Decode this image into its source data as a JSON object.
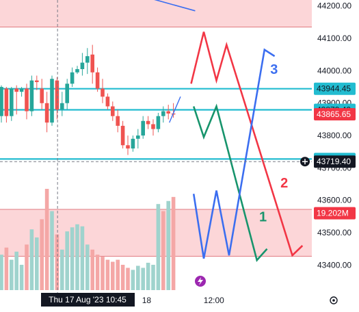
{
  "colors": {
    "up": "#26a69a",
    "down": "#ef5350",
    "vol_up": "#9fd3cd",
    "vol_down": "#f4a7a6",
    "level": "#22bcd0",
    "zone_fill": "#fcd6d8",
    "zone_line": "#e0797f",
    "red_path": "#f23645",
    "green_path": "#17946c",
    "blue_path": "#3b6ef0",
    "price_tag": "#f23645",
    "level_tag": "#22bcd0",
    "dark_tag": "#131722"
  },
  "chart_data": {
    "type": "candlestick",
    "ylim": [
      43350,
      44210
    ],
    "y_ticks": [
      44200,
      44100,
      44000,
      43900,
      43800,
      43700,
      43600,
      43500,
      43400
    ],
    "y_tick_labels": [
      "44200.00",
      "44100.00",
      "44000.00",
      "43900.00",
      "43800.00",
      "43700.00",
      "43600.00",
      "43500.00",
      "43400.00"
    ],
    "x_ticks": [
      {
        "label": "18",
        "bar": 28.7
      },
      {
        "label": "12:00",
        "bar": 42
      }
    ],
    "crosshair_date_label": "Thu 17 Aug '23   10:45",
    "crosshair_bar": 11.1,
    "crosshair_price_label": "43719.40",
    "crosshair_price": 43719.4,
    "levels": [
      {
        "price": 43944.45,
        "label": "43944.45"
      },
      {
        "price": 43879.4,
        "label": "43879.40"
      },
      {
        "price": 43727.55,
        "label": "43727.55"
      }
    ],
    "last_price": {
      "price": 43865.65,
      "label": "43865.65"
    },
    "zones": [
      {
        "top": 44250,
        "bottom": 44135
      },
      {
        "top": 43572,
        "bottom": 43427
      }
    ],
    "volume_label": "19.202M",
    "volume_label_price": 43560,
    "candles": [
      {
        "o": 43860,
        "h": 43955,
        "l": 43840,
        "c": 43950
      },
      {
        "o": 43945,
        "h": 43950,
        "l": 43840,
        "c": 43860
      },
      {
        "o": 43860,
        "h": 43950,
        "l": 43845,
        "c": 43945
      },
      {
        "o": 43945,
        "h": 43955,
        "l": 43865,
        "c": 43935
      },
      {
        "o": 43935,
        "h": 43950,
        "l": 43920,
        "c": 43945
      },
      {
        "o": 43945,
        "h": 43960,
        "l": 43850,
        "c": 43875
      },
      {
        "o": 43875,
        "h": 43985,
        "l": 43860,
        "c": 43970
      },
      {
        "o": 43970,
        "h": 43985,
        "l": 43940,
        "c": 43965
      },
      {
        "o": 43945,
        "h": 43975,
        "l": 43880,
        "c": 43900
      },
      {
        "o": 43900,
        "h": 43935,
        "l": 43810,
        "c": 43840
      },
      {
        "o": 43840,
        "h": 43985,
        "l": 43830,
        "c": 43975
      },
      {
        "o": 43970,
        "h": 43980,
        "l": 43850,
        "c": 43880
      },
      {
        "o": 43880,
        "h": 43935,
        "l": 43860,
        "c": 43900
      },
      {
        "o": 43900,
        "h": 43975,
        "l": 43880,
        "c": 43960
      },
      {
        "o": 43960,
        "h": 44010,
        "l": 43950,
        "c": 43995
      },
      {
        "o": 43995,
        "h": 44015,
        "l": 43990,
        "c": 44005
      },
      {
        "o": 44005,
        "h": 44055,
        "l": 43985,
        "c": 44025
      },
      {
        "o": 44025,
        "h": 44070,
        "l": 43990,
        "c": 44045
      },
      {
        "o": 44050,
        "h": 44080,
        "l": 43960,
        "c": 43995
      },
      {
        "o": 43995,
        "h": 44010,
        "l": 43935,
        "c": 43945
      },
      {
        "o": 43945,
        "h": 43975,
        "l": 43900,
        "c": 43920
      },
      {
        "o": 43920,
        "h": 43930,
        "l": 43880,
        "c": 43890
      },
      {
        "o": 43890,
        "h": 43905,
        "l": 43845,
        "c": 43860
      },
      {
        "o": 43860,
        "h": 43880,
        "l": 43810,
        "c": 43830
      },
      {
        "o": 43830,
        "h": 43845,
        "l": 43760,
        "c": 43770
      },
      {
        "o": 43770,
        "h": 43800,
        "l": 43740,
        "c": 43760
      },
      {
        "o": 43760,
        "h": 43800,
        "l": 43750,
        "c": 43790
      },
      {
        "o": 43790,
        "h": 43820,
        "l": 43760,
        "c": 43800
      },
      {
        "o": 43800,
        "h": 43860,
        "l": 43790,
        "c": 43845
      },
      {
        "o": 43845,
        "h": 43860,
        "l": 43820,
        "c": 43835
      },
      {
        "o": 43835,
        "h": 43850,
        "l": 43800,
        "c": 43820
      },
      {
        "o": 43820,
        "h": 43870,
        "l": 43810,
        "c": 43860
      },
      {
        "o": 43860,
        "h": 43890,
        "l": 43840,
        "c": 43875
      },
      {
        "o": 43875,
        "h": 43895,
        "l": 43850,
        "c": 43868
      },
      {
        "o": 43868,
        "h": 43900,
        "l": 43855,
        "c": 43865
      }
    ],
    "volume_scale_max": 1,
    "volumes": [
      {
        "v": 0.35,
        "up": true
      },
      {
        "v": 0.42,
        "up": false
      },
      {
        "v": 0.3,
        "up": true
      },
      {
        "v": 0.38,
        "up": true
      },
      {
        "v": 0.25,
        "up": true
      },
      {
        "v": 0.45,
        "up": false
      },
      {
        "v": 0.6,
        "up": true
      },
      {
        "v": 0.52,
        "up": true
      },
      {
        "v": 0.7,
        "up": false
      },
      {
        "v": 1.0,
        "up": false
      },
      {
        "v": 0.78,
        "up": true
      },
      {
        "v": 0.55,
        "up": false
      },
      {
        "v": 0.4,
        "up": true
      },
      {
        "v": 0.58,
        "up": true
      },
      {
        "v": 0.62,
        "up": true
      },
      {
        "v": 0.65,
        "up": true
      },
      {
        "v": 0.63,
        "up": true
      },
      {
        "v": 0.45,
        "up": true
      },
      {
        "v": 0.4,
        "up": false
      },
      {
        "v": 0.35,
        "up": false
      },
      {
        "v": 0.33,
        "up": false
      },
      {
        "v": 0.3,
        "up": false
      },
      {
        "v": 0.28,
        "up": false
      },
      {
        "v": 0.3,
        "up": false
      },
      {
        "v": 0.25,
        "up": false
      },
      {
        "v": 0.22,
        "up": false
      },
      {
        "v": 0.2,
        "up": true
      },
      {
        "v": 0.24,
        "up": true
      },
      {
        "v": 0.22,
        "up": true
      },
      {
        "v": 0.27,
        "up": true
      },
      {
        "v": 0.25,
        "up": true
      },
      {
        "v": 0.85,
        "up": true
      },
      {
        "v": 0.78,
        "up": false
      },
      {
        "v": 0.88,
        "up": true
      },
      {
        "v": 0.92,
        "up": false
      }
    ],
    "trend_line": [
      {
        "bar": 23.3,
        "p": 44250
      },
      {
        "bar": 38.3,
        "p": 44185
      }
    ],
    "small_line": [
      {
        "bar": 33.2,
        "p": 43840
      },
      {
        "bar": 35.4,
        "p": 43920
      }
    ],
    "paths": [
      {
        "label": "2",
        "color_key": "red_path",
        "points": [
          [
            37.5,
            43960
          ],
          [
            40.0,
            44120
          ],
          [
            42.5,
            43970
          ],
          [
            44.5,
            44080
          ],
          [
            57.5,
            43430
          ],
          [
            59.5,
            43460
          ]
        ],
        "label_bar": 55.9,
        "label_price": 43640
      },
      {
        "label": "1",
        "color_key": "green_path",
        "points": [
          [
            38.0,
            43890
          ],
          [
            40.0,
            43795
          ],
          [
            42.5,
            43890
          ],
          [
            50.5,
            43415
          ],
          [
            52.5,
            43450
          ]
        ],
        "label_bar": 51.7,
        "label_price": 43535
      },
      {
        "label": "3",
        "color_key": "blue_path",
        "points": [
          [
            38.0,
            43620
          ],
          [
            40.0,
            43420
          ],
          [
            42.5,
            43630
          ],
          [
            45.0,
            43430
          ],
          [
            52.0,
            44065
          ],
          [
            54.0,
            44045
          ]
        ],
        "label_bar": 53.9,
        "label_price": 43990
      }
    ]
  }
}
